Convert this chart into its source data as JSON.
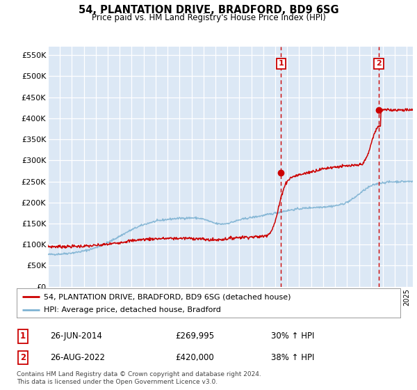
{
  "title": "54, PLANTATION DRIVE, BRADFORD, BD9 6SG",
  "subtitle": "Price paid vs. HM Land Registry's House Price Index (HPI)",
  "ylim": [
    0,
    570000
  ],
  "yticks": [
    0,
    50000,
    100000,
    150000,
    200000,
    250000,
    300000,
    350000,
    400000,
    450000,
    500000,
    550000
  ],
  "ytick_labels": [
    "£0",
    "£50K",
    "£100K",
    "£150K",
    "£200K",
    "£250K",
    "£300K",
    "£350K",
    "£400K",
    "£450K",
    "£500K",
    "£550K"
  ],
  "red_line_color": "#cc0000",
  "blue_line_color": "#7fb3d3",
  "vline_color": "#cc0000",
  "background_color": "#ffffff",
  "plot_bg_color": "#dce8f5",
  "grid_color": "#ffffff",
  "legend_entry_1": "54, PLANTATION DRIVE, BRADFORD, BD9 6SG (detached house)",
  "legend_entry_2": "HPI: Average price, detached house, Bradford",
  "annotation_1_date": "26-JUN-2014",
  "annotation_1_price": "£269,995",
  "annotation_1_hpi": "30% ↑ HPI",
  "annotation_2_date": "26-AUG-2022",
  "annotation_2_price": "£420,000",
  "annotation_2_hpi": "38% ↑ HPI",
  "vline_x1": 2014.49,
  "vline_x2": 2022.66,
  "marker_y1": 269995,
  "marker_y2": 420000,
  "footnote": "Contains HM Land Registry data © Crown copyright and database right 2024.\nThis data is licensed under the Open Government Licence v3.0.",
  "xmin": 1995.0,
  "xmax": 2025.5
}
